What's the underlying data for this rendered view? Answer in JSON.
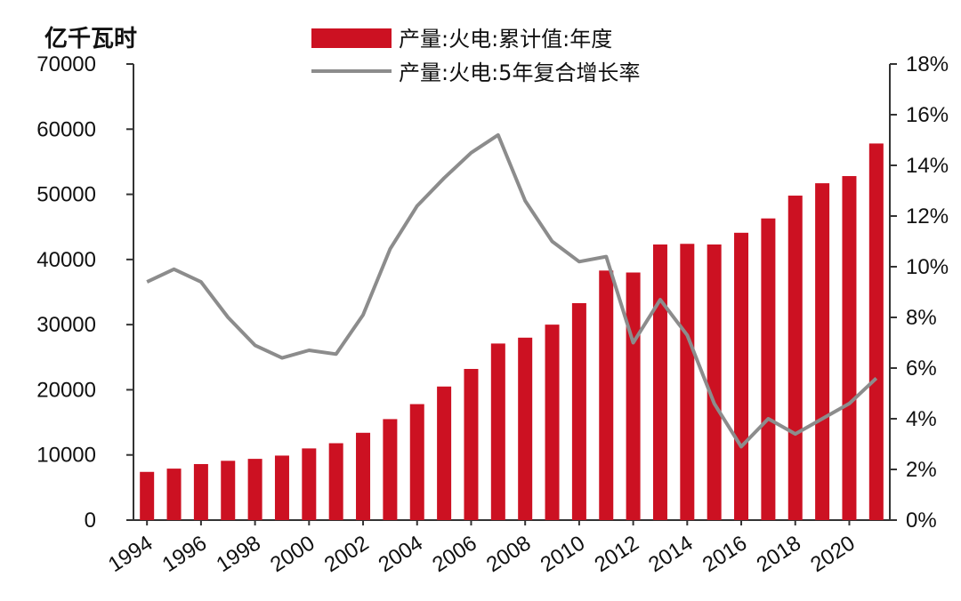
{
  "chart_data": {
    "type": "bar+line",
    "y_left_unit": "亿千瓦时",
    "y_left_ticks": [
      "0",
      "10000",
      "20000",
      "30000",
      "40000",
      "50000",
      "60000",
      "70000"
    ],
    "y_left_range": [
      0,
      70000
    ],
    "y_right_ticks": [
      "0%",
      "2%",
      "4%",
      "6%",
      "8%",
      "10%",
      "12%",
      "14%",
      "16%",
      "18%"
    ],
    "y_right_range": [
      0,
      18
    ],
    "x_ticks": [
      "1994",
      "1996",
      "1998",
      "2000",
      "2002",
      "2004",
      "2006",
      "2008",
      "2010",
      "2012",
      "2014",
      "2016",
      "2018",
      "2020"
    ],
    "years": [
      1994,
      1995,
      1996,
      1997,
      1998,
      1999,
      2000,
      2001,
      2002,
      2003,
      2004,
      2005,
      2006,
      2007,
      2008,
      2009,
      2010,
      2011,
      2012,
      2013,
      2014,
      2015,
      2016,
      2017,
      2018,
      2019,
      2020,
      2021
    ],
    "series": [
      {
        "name": "产量:火电:累计值:年度",
        "type": "bar",
        "color": "#cc1122",
        "values": [
          7400,
          7900,
          8600,
          9100,
          9400,
          9900,
          11000,
          11800,
          13400,
          15500,
          17800,
          20500,
          23200,
          27100,
          28000,
          30000,
          33300,
          38300,
          38000,
          42300,
          42400,
          42300,
          44100,
          46300,
          49800,
          51700,
          52800,
          57800
        ]
      },
      {
        "name": "产量:火电:5年复合增长率",
        "type": "line",
        "color": "#8c8c8c",
        "values": [
          9.4,
          9.9,
          9.4,
          8.0,
          6.9,
          6.4,
          6.7,
          6.55,
          8.1,
          10.7,
          12.4,
          13.5,
          14.5,
          15.2,
          12.6,
          11.0,
          10.2,
          10.4,
          7.0,
          8.7,
          7.3,
          4.6,
          2.9,
          4.0,
          3.4,
          4.0,
          4.6,
          5.6
        ]
      }
    ],
    "legend_position": "top"
  }
}
